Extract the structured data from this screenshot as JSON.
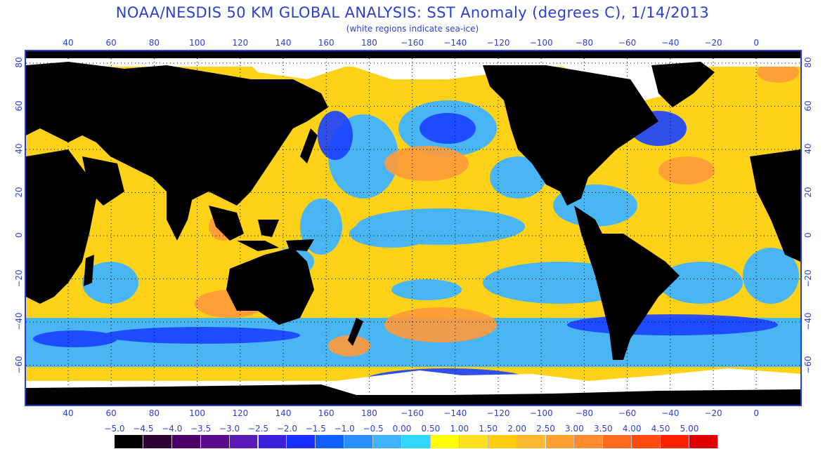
{
  "title": "NOAA/NESDIS 50 KM GLOBAL ANALYSIS: SST Anomaly (degrees C), 1/14/2013",
  "subtitle": "(white regions indicate sea-ice)",
  "lon_ticks": [
    "40",
    "60",
    "80",
    "100",
    "120",
    "140",
    "160",
    "180",
    "−160",
    "−140",
    "−120",
    "−100",
    "−80",
    "−60",
    "−40",
    "−20",
    "0"
  ],
  "lat_ticks": [
    "80",
    "60",
    "40",
    "20",
    "0",
    "−20",
    "−40",
    "−60"
  ],
  "colorbar": {
    "labels": [
      "−5.0",
      "−4.5",
      "−4.0",
      "−3.5",
      "−3.0",
      "−2.5",
      "−2.0",
      "−1.5",
      "−1.0",
      "−0.5",
      "0.00",
      "0.50",
      "1.00",
      "1.50",
      "2.00",
      "2.50",
      "3.00",
      "3.50",
      "4.00",
      "4.50",
      "5.00"
    ],
    "colors": [
      "#000000",
      "#2e0033",
      "#4a0066",
      "#5a0a8c",
      "#5a1ab8",
      "#3a20d8",
      "#1a30ff",
      "#1060ff",
      "#2a90ff",
      "#40b4ff",
      "#30d8ff",
      "#ffff00",
      "#ffe020",
      "#ffcc10",
      "#ffb830",
      "#ffa030",
      "#ff8a30",
      "#ff6a20",
      "#ff4a10",
      "#ff2000",
      "#e00000"
    ]
  },
  "map_colors": {
    "land": "#000000",
    "ice": "#ffffff",
    "ocean_warm": "#ffd21a",
    "ocean_hot": "#ff9a3a",
    "ocean_cool": "#40b4ff",
    "ocean_cold": "#1a40ff",
    "grid": "#000000"
  }
}
